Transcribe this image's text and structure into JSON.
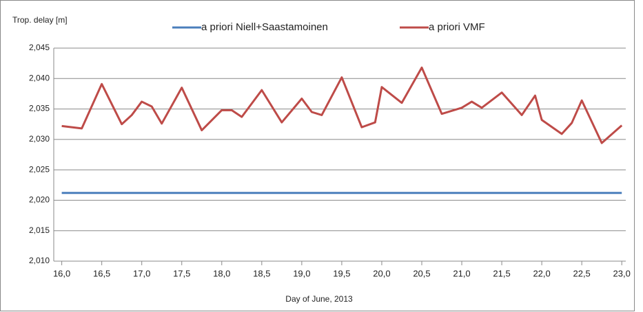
{
  "chart_data": {
    "type": "line",
    "y_label": "Trop. delay [m]",
    "x_label": "Day of June, 2013",
    "xlim": [
      15.9,
      23.05
    ],
    "ylim": [
      2.01,
      2.045
    ],
    "xticks": [
      {
        "value": 16,
        "label": "16,0"
      },
      {
        "value": 16.5,
        "label": "16,5"
      },
      {
        "value": 17,
        "label": "17,0"
      },
      {
        "value": 17.5,
        "label": "17,5"
      },
      {
        "value": 18,
        "label": "18,0"
      },
      {
        "value": 18.5,
        "label": "18,5"
      },
      {
        "value": 19,
        "label": "19,0"
      },
      {
        "value": 19.5,
        "label": "19,5"
      },
      {
        "value": 20,
        "label": "20,0"
      },
      {
        "value": 20.5,
        "label": "20,5"
      },
      {
        "value": 21,
        "label": "21,0"
      },
      {
        "value": 21.5,
        "label": "21,5"
      },
      {
        "value": 22,
        "label": "22,0"
      },
      {
        "value": 22.5,
        "label": "22,5"
      },
      {
        "value": 23,
        "label": "23,0"
      }
    ],
    "yticks": [
      {
        "value": 2.01,
        "label": "2,010"
      },
      {
        "value": 2.015,
        "label": "2,015"
      },
      {
        "value": 2.02,
        "label": "2,020"
      },
      {
        "value": 2.025,
        "label": "2,025"
      },
      {
        "value": 2.03,
        "label": "2,030"
      },
      {
        "value": 2.035,
        "label": "2,035"
      },
      {
        "value": 2.04,
        "label": "2,040"
      },
      {
        "value": 2.045,
        "label": "2,045"
      }
    ],
    "grid": true,
    "series": [
      {
        "name": "a priori Niell+Saastamoinen",
        "color": "#4a7ebb",
        "x": [
          16,
          23
        ],
        "values": [
          2.0212,
          2.0212
        ]
      },
      {
        "name": "a priori VMF",
        "color": "#be4b48",
        "x": [
          16,
          16.25,
          16.5,
          16.75,
          16.875,
          17,
          17.125,
          17.25,
          17.5,
          17.75,
          18,
          18.125,
          18.25,
          18.5,
          18.75,
          19,
          19.125,
          19.25,
          19.5,
          19.75,
          19.917,
          20,
          20.25,
          20.5,
          20.75,
          21,
          21.125,
          21.25,
          21.5,
          21.75,
          21.917,
          22,
          22.25,
          22.375,
          22.5,
          22.75,
          23
        ],
        "values": [
          2.0322,
          2.0318,
          2.0391,
          2.0325,
          2.034,
          2.0362,
          2.0354,
          2.0326,
          2.0385,
          2.0315,
          2.0348,
          2.0348,
          2.0337,
          2.0381,
          2.0328,
          2.0367,
          2.0345,
          2.034,
          2.0402,
          2.032,
          2.0328,
          2.0386,
          2.036,
          2.0418,
          2.0342,
          2.0352,
          2.0362,
          2.0352,
          2.0377,
          2.034,
          2.0372,
          2.0332,
          2.0309,
          2.0327,
          2.0364,
          2.0294,
          2.0323
        ]
      }
    ]
  }
}
